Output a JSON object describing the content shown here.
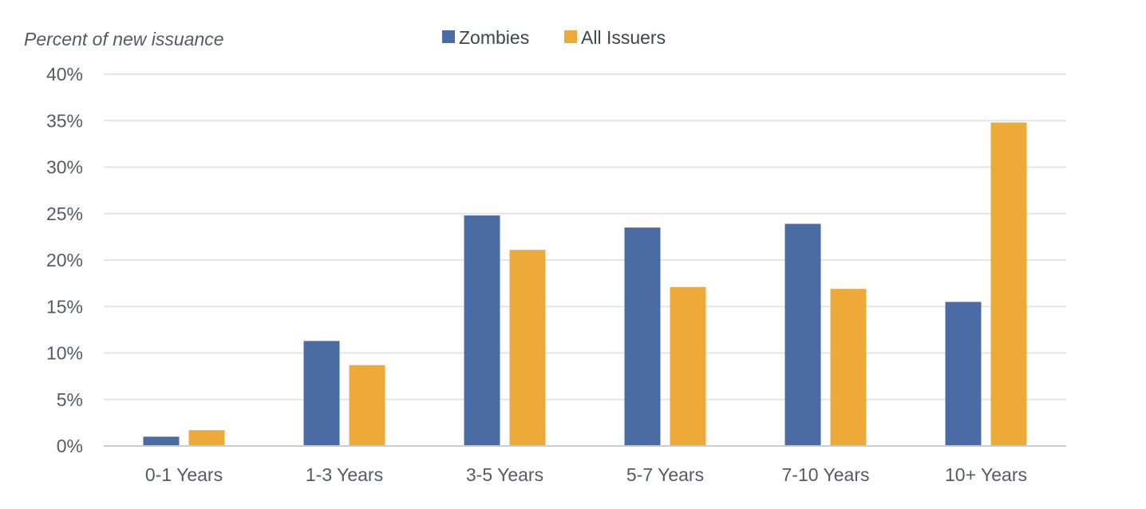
{
  "chart_data": {
    "type": "bar",
    "ylabel": "Percent of new issuance",
    "xlabel": "",
    "categories": [
      "0-1 Years",
      "1-3 Years",
      "3-5 Years",
      "5-7 Years",
      "7-10 Years",
      "10+ Years"
    ],
    "series": [
      {
        "name": "Zombies",
        "color": "#4a6ba3",
        "values": [
          1.0,
          11.3,
          24.8,
          23.5,
          23.9,
          15.5
        ]
      },
      {
        "name": "All Issuers",
        "color": "#edaa39",
        "values": [
          1.7,
          8.7,
          21.1,
          17.1,
          16.9,
          34.8
        ]
      }
    ],
    "ylim": [
      0,
      40
    ],
    "yticks": [
      0,
      5,
      10,
      15,
      20,
      25,
      30,
      35,
      40
    ],
    "ytick_labels": [
      "0%",
      "5%",
      "10%",
      "15%",
      "20%",
      "25%",
      "30%",
      "35%",
      "40%"
    ],
    "grid": true,
    "legend_position": "top-center"
  }
}
